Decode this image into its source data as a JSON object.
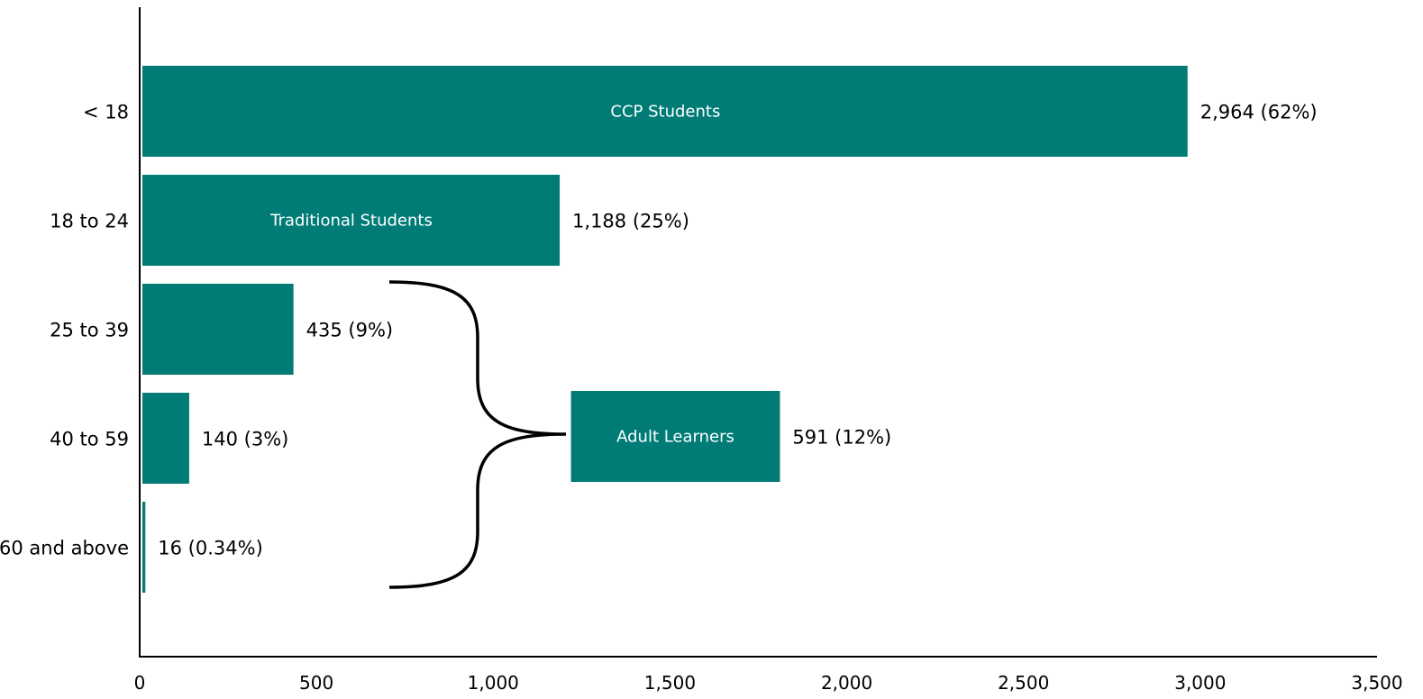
{
  "chart_data": {
    "type": "bar",
    "orientation": "horizontal",
    "title": "",
    "xlabel": "",
    "ylabel": "",
    "xlim": [
      0,
      3500
    ],
    "x_ticks": [
      "0",
      "500",
      "1,000",
      "1,500",
      "2,000",
      "2,500",
      "3,000",
      "3,500"
    ],
    "x_tick_values": [
      0,
      500,
      1000,
      1500,
      2000,
      2500,
      3000,
      3500
    ],
    "grid": false,
    "bar_color": "#007B76",
    "categories": [
      "< 18",
      "18 to 24",
      "25 to 39",
      "40 to 59",
      "60 and above"
    ],
    "values": [
      2964,
      1188,
      435,
      140,
      16
    ],
    "value_labels": [
      "2,964 (62%)",
      "1,188 (25%)",
      "435 (9%)",
      "140 (3%)",
      "16 (0.34%)"
    ],
    "bar_annotations": [
      "CCP Students",
      "Traditional Students",
      "",
      "",
      ""
    ],
    "group_bar": {
      "label": "Adult Learners",
      "value": 591,
      "value_label": "591 (12%)",
      "start": 1220,
      "groups": [
        "25 to 39",
        "40 to 59",
        "60 and above"
      ]
    }
  }
}
